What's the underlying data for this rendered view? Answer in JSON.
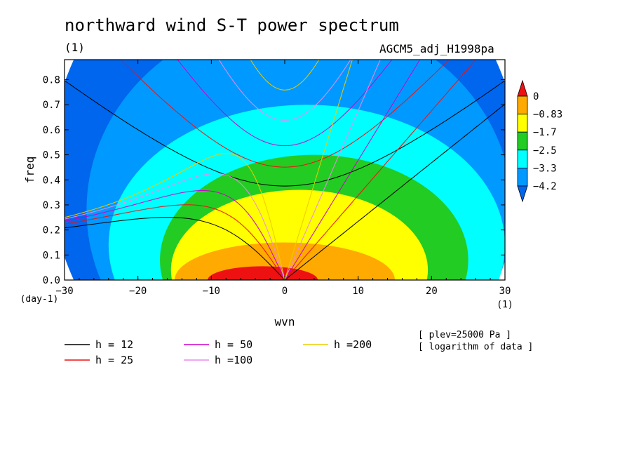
{
  "title": "northward wind S-T power spectrum",
  "units_label": "(1)",
  "experiment": "AGCM5_adj_H1998pa",
  "notes": [
    "[ plev=25000 Pa ]",
    "[ logarithm of data ]"
  ],
  "chart_data": {
    "type": "contour",
    "xlabel": "wvn",
    "ylabel": "freq",
    "x_unit": "(1)",
    "y_unit": "(day-1)",
    "xlim": [
      -30,
      30
    ],
    "ylim": [
      0,
      0.88
    ],
    "x_ticks": [
      -30,
      -20,
      -10,
      0,
      10,
      20,
      30
    ],
    "x_tick_labels": [
      "−30",
      "−20",
      "−10",
      "0",
      "10",
      "20",
      "30"
    ],
    "y_ticks": [
      0,
      0.1,
      0.2,
      0.3,
      0.4,
      0.5,
      0.6,
      0.7,
      0.8
    ],
    "y_tick_labels": [
      "0.0",
      "0.1",
      "0.2",
      "0.3",
      "0.4",
      "0.5",
      "0.6",
      "0.7",
      "0.8"
    ],
    "colorbar": {
      "levels": [
        0,
        -0.83,
        -1.7,
        -2.5,
        -3.3,
        -4.2
      ],
      "labels": [
        "0",
        "−0.83",
        "−1.7",
        "−2.5",
        "−3.3",
        "−4.2"
      ],
      "colors": [
        "#ee1111",
        "#ffaa00",
        "#ffff00",
        "#22cc22",
        "#00ffff",
        "#0099ff",
        "#0066ee"
      ]
    },
    "filled_regions": [
      {
        "class": "< -4.2",
        "color": "#0066ee",
        "center": [
          0,
          0.44
        ],
        "half_width": 32,
        "half_height": 1.0
      },
      {
        "class": "-4.2 to -3.3",
        "color": "#0099ff",
        "center": [
          2,
          0.28
        ],
        "half_width": 29,
        "half_height": 0.78
      },
      {
        "class": "-3.3 to -2.5",
        "color": "#00ffff",
        "center": [
          3,
          0.14
        ],
        "half_width": 27,
        "half_height": 0.56
      },
      {
        "class": "-2.5 to -1.7",
        "color": "#22cc22",
        "center": [
          4,
          0.08
        ],
        "half_width": 21,
        "half_height": 0.42
      },
      {
        "class": "-1.7 to -0.83",
        "color": "#ffff00",
        "center": [
          2,
          0.04
        ],
        "half_width": 17.5,
        "half_height": 0.32
      },
      {
        "class": "-0.83 to 0",
        "color": "#ffaa00",
        "center": [
          0,
          0.0
        ],
        "half_width": 15,
        "half_height": 0.15
      },
      {
        "class": "> 0",
        "color": "#ee1111",
        "center": [
          -3,
          0.0
        ],
        "half_width": 7.5,
        "half_height": 0.055
      }
    ],
    "dispersion_curves": [
      {
        "name": "h = 12",
        "h": 12,
        "color": "#000000"
      },
      {
        "name": "h = 25",
        "h": 25,
        "color": "#ee1111"
      },
      {
        "name": "h = 50",
        "h": 50,
        "color": "#cc00cc"
      },
      {
        "name": "h =100",
        "h": 100,
        "color": "#ee88ee"
      },
      {
        "name": "h =200",
        "h": 200,
        "color": "#eecc00"
      }
    ]
  }
}
